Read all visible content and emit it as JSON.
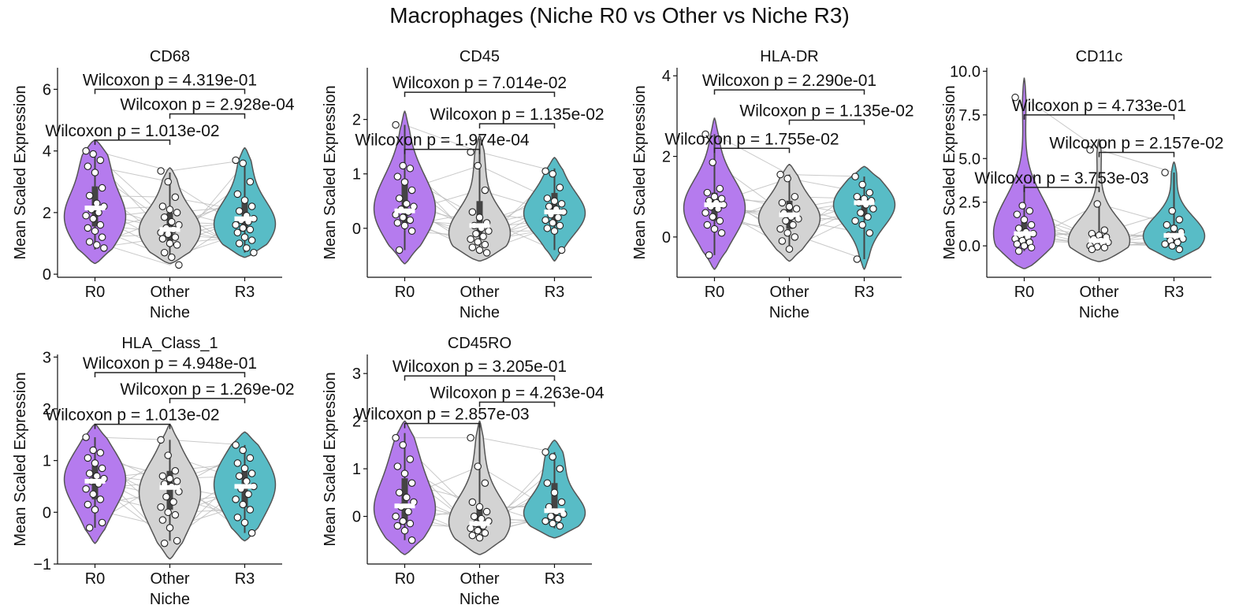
{
  "figure_title": "Macrophages (Niche R0 vs Other vs Niche R3)",
  "colors": {
    "R0": "#b57bee",
    "Other": "#d3d3d3",
    "R3": "#58bcc6",
    "outline": "#555555",
    "pair_line": "#bbbbbb",
    "median": "#ffffff",
    "iqr": "#444444"
  },
  "chart_data": [
    {
      "type": "violin",
      "title": "CD68",
      "xlabel": "Niche",
      "ylabel": "Mean Scaled Expression",
      "categories": [
        "R0",
        "Other",
        "R3"
      ],
      "ylim": [
        -0.1,
        6.7
      ],
      "yticks": [
        0,
        2,
        4,
        6
      ],
      "ytick_labels": [
        "0",
        "2",
        "4",
        "6"
      ],
      "medians": [
        2.15,
        1.45,
        1.8
      ],
      "iqr": [
        [
          1.55,
          2.85
        ],
        [
          1.05,
          2.0
        ],
        [
          1.45,
          2.45
        ]
      ],
      "whiskers": [
        [
          0.8,
          4.0
        ],
        [
          0.6,
          3.3
        ],
        [
          0.7,
          3.7
        ]
      ],
      "violin_extent": [
        [
          0.35,
          4.35
        ],
        [
          0.35,
          3.45
        ],
        [
          0.55,
          4.1
        ]
      ],
      "points": [
        [
          4.0,
          3.9,
          3.7,
          3.5,
          3.3,
          2.8,
          2.55,
          2.3,
          2.2,
          2.1,
          2.0,
          1.9,
          1.8,
          1.6,
          1.5,
          1.4,
          1.2,
          1.05,
          0.95,
          0.85
        ],
        [
          3.35,
          3.0,
          2.5,
          2.2,
          2.1,
          2.0,
          1.85,
          1.7,
          1.6,
          1.5,
          1.45,
          1.35,
          1.3,
          1.2,
          1.15,
          1.0,
          0.95,
          0.7,
          0.55,
          0.3
        ],
        [
          3.7,
          3.6,
          3.0,
          2.6,
          2.4,
          2.2,
          2.05,
          1.9,
          1.8,
          1.75,
          1.7,
          1.6,
          1.5,
          1.45,
          1.35,
          1.2,
          1.1,
          1.0,
          0.85,
          0.7
        ]
      ],
      "annotations": [
        {
          "text": "Wilcoxon p = 4.319e-01",
          "from": 0,
          "to": 2,
          "y": 6.0
        },
        {
          "text": "Wilcoxon p = 2.928e-04",
          "from": 1,
          "to": 2,
          "y": 5.2
        },
        {
          "text": "Wilcoxon p = 1.013e-02",
          "from": 0,
          "to": 1,
          "y": 4.35
        }
      ]
    },
    {
      "type": "violin",
      "title": "CD45",
      "xlabel": "Niche",
      "ylabel": "Mean Scaled Expression",
      "categories": [
        "R0",
        "Other",
        "R3"
      ],
      "ylim": [
        -0.9,
        2.95
      ],
      "yticks": [
        0,
        1,
        2
      ],
      "ytick_labels": [
        "0",
        "1",
        "2"
      ],
      "medians": [
        0.32,
        0.05,
        0.3
      ],
      "iqr": [
        [
          0.1,
          0.9
        ],
        [
          -0.15,
          0.5
        ],
        [
          0.05,
          0.65
        ]
      ],
      "whiskers": [
        [
          -0.4,
          1.9
        ],
        [
          -0.45,
          1.65
        ],
        [
          -0.4,
          1.1
        ]
      ],
      "violin_extent": [
        [
          -0.65,
          2.15
        ],
        [
          -0.6,
          1.7
        ],
        [
          -0.6,
          1.3
        ]
      ],
      "points": [
        [
          1.9,
          1.15,
          1.1,
          0.95,
          0.85,
          0.7,
          0.55,
          0.45,
          0.4,
          0.35,
          0.3,
          0.25,
          0.2,
          0.15,
          0.1,
          0.05,
          -0.05,
          -0.4
        ],
        [
          1.4,
          1.15,
          0.7,
          0.3,
          0.2,
          0.1,
          0.05,
          0.0,
          -0.05,
          -0.1,
          -0.15,
          -0.2,
          -0.25,
          -0.3,
          -0.35,
          -0.4,
          -0.45
        ],
        [
          1.05,
          1.0,
          0.75,
          0.55,
          0.5,
          0.45,
          0.4,
          0.35,
          0.3,
          0.25,
          0.2,
          0.15,
          0.1,
          0.05,
          0.0,
          -0.05,
          -0.4
        ]
      ],
      "annotations": [
        {
          "text": "Wilcoxon p = 7.014e-02",
          "from": 0,
          "to": 2,
          "y": 2.5
        },
        {
          "text": "Wilcoxon p = 1.135e-02",
          "from": 1,
          "to": 2,
          "y": 1.92
        },
        {
          "text": "Wilcoxon p = 1.974e-04",
          "from": 0,
          "to": 1,
          "y": 1.45
        }
      ]
    },
    {
      "type": "violin",
      "title": "HLA-DR",
      "xlabel": "Niche",
      "ylabel": "Mean Scaled Expression",
      "categories": [
        "R0",
        "Other",
        "R3"
      ],
      "ylim": [
        -1.0,
        4.2
      ],
      "yticks": [
        0,
        2,
        4
      ],
      "ytick_labels": [
        "0",
        "2",
        "4"
      ],
      "medians": [
        0.8,
        0.55,
        0.85
      ],
      "iqr": [
        [
          0.4,
          1.1
        ],
        [
          0.2,
          0.9
        ],
        [
          0.5,
          1.0
        ]
      ],
      "whiskers": [
        [
          -0.45,
          2.55
        ],
        [
          -0.3,
          1.55
        ],
        [
          -0.55,
          1.5
        ]
      ],
      "violin_extent": [
        [
          -0.8,
          2.95
        ],
        [
          -0.6,
          1.8
        ],
        [
          -0.8,
          1.75
        ]
      ],
      "points": [
        [
          2.55,
          1.85,
          1.2,
          1.1,
          1.0,
          0.95,
          0.9,
          0.85,
          0.8,
          0.75,
          0.7,
          0.6,
          0.5,
          0.4,
          0.3,
          0.2,
          0.1,
          -0.45
        ],
        [
          1.55,
          1.45,
          1.0,
          0.85,
          0.75,
          0.7,
          0.6,
          0.5,
          0.45,
          0.4,
          0.3,
          0.2,
          0.1,
          0.0,
          -0.1,
          -0.3
        ],
        [
          1.5,
          1.3,
          1.1,
          1.0,
          0.95,
          0.9,
          0.85,
          0.8,
          0.7,
          0.6,
          0.5,
          0.4,
          0.3,
          0.1,
          -0.55
        ]
      ],
      "annotations": [
        {
          "text": "Wilcoxon p = 2.290e-01",
          "from": 0,
          "to": 2,
          "y": 3.65
        },
        {
          "text": "Wilcoxon p = 1.135e-02",
          "from": 1,
          "to": 2,
          "y": 2.9
        },
        {
          "text": "Wilcoxon p = 1.755e-02",
          "from": 0,
          "to": 1,
          "y": 2.2
        }
      ]
    },
    {
      "type": "violin",
      "title": "CD11c",
      "xlabel": "Niche",
      "ylabel": "Mean Scaled Expression",
      "categories": [
        "R0",
        "Other",
        "R3"
      ],
      "ylim": [
        -1.8,
        10.2
      ],
      "yticks": [
        0,
        2.5,
        5,
        7.5,
        10
      ],
      "ytick_labels": [
        "0.0",
        "2.5",
        "5.0",
        "7.5",
        "10.0"
      ],
      "medians": [
        0.7,
        0.3,
        0.6
      ],
      "iqr": [
        [
          0.2,
          1.5
        ],
        [
          0.0,
          0.7
        ],
        [
          0.1,
          1.2
        ]
      ],
      "whiskers": [
        [
          -0.3,
          3.5
        ],
        [
          -0.2,
          2.3
        ],
        [
          -0.2,
          4.2
        ]
      ],
      "violin_extent": [
        [
          -1.3,
          9.6
        ],
        [
          -0.9,
          6.1
        ],
        [
          -0.8,
          4.8
        ]
      ],
      "points": [
        [
          8.5,
          2.3,
          2.0,
          1.8,
          1.5,
          1.2,
          1.0,
          0.8,
          0.7,
          0.6,
          0.5,
          0.4,
          0.3,
          0.2,
          0.1,
          0.0,
          -0.1,
          -0.3
        ],
        [
          5.5,
          2.4,
          0.9,
          0.7,
          0.6,
          0.5,
          0.4,
          0.3,
          0.2,
          0.15,
          0.1,
          0.0,
          -0.05,
          -0.1,
          -0.2
        ],
        [
          4.2,
          2.0,
          1.5,
          1.2,
          1.0,
          0.8,
          0.6,
          0.5,
          0.4,
          0.3,
          0.2,
          0.1,
          0.0,
          -0.2
        ]
      ],
      "annotations": [
        {
          "text": "Wilcoxon p = 4.733e-01",
          "from": 0,
          "to": 2,
          "y": 7.5
        },
        {
          "text": "Wilcoxon p = 2.157e-02",
          "from": 1,
          "to": 2,
          "y": 5.35
        },
        {
          "text": "Wilcoxon p = 3.753e-03",
          "from": 0,
          "to": 1,
          "y": 3.35
        }
      ]
    },
    {
      "type": "violin",
      "title": "HLA_Class_1",
      "xlabel": "Niche",
      "ylabel": "Mean Scaled Expression",
      "categories": [
        "R0",
        "Other",
        "R3"
      ],
      "ylim": [
        -1.0,
        3.05
      ],
      "yticks": [
        -1,
        0,
        1,
        2,
        3
      ],
      "ytick_labels": [
        "−1",
        "0",
        "1",
        "2",
        "3"
      ],
      "medians": [
        0.6,
        0.48,
        0.5
      ],
      "iqr": [
        [
          0.25,
          0.95
        ],
        [
          0.05,
          0.8
        ],
        [
          0.1,
          0.85
        ]
      ],
      "whiskers": [
        [
          -0.3,
          1.45
        ],
        [
          -0.55,
          1.4
        ],
        [
          -0.4,
          1.3
        ]
      ],
      "violin_extent": [
        [
          -0.6,
          1.7
        ],
        [
          -0.9,
          1.7
        ],
        [
          -0.55,
          1.55
        ]
      ],
      "points": [
        [
          1.45,
          1.2,
          1.15,
          1.05,
          0.95,
          0.85,
          0.75,
          0.7,
          0.65,
          0.6,
          0.55,
          0.45,
          0.35,
          0.25,
          0.15,
          0.05,
          -0.2,
          -0.3
        ],
        [
          1.4,
          1.1,
          0.8,
          0.7,
          0.65,
          0.6,
          0.55,
          0.5,
          0.4,
          0.3,
          0.2,
          0.1,
          0.0,
          -0.05,
          -0.15,
          -0.3,
          -0.55,
          -0.6
        ],
        [
          1.3,
          1.2,
          1.05,
          0.95,
          0.85,
          0.75,
          0.7,
          0.6,
          0.5,
          0.45,
          0.35,
          0.25,
          0.15,
          0.05,
          -0.1,
          -0.2,
          -0.4
        ]
      ],
      "annotations": [
        {
          "text": "Wilcoxon p = 4.948e-01",
          "from": 0,
          "to": 2,
          "y": 2.7
        },
        {
          "text": "Wilcoxon p = 1.269e-02",
          "from": 1,
          "to": 2,
          "y": 2.2
        },
        {
          "text": "Wilcoxon p = 1.013e-02",
          "from": 0,
          "to": 1,
          "y": 1.7
        }
      ]
    },
    {
      "type": "violin",
      "title": "CD45RO",
      "xlabel": "Niche",
      "ylabel": "Mean Scaled Expression",
      "categories": [
        "R0",
        "Other",
        "R3"
      ],
      "ylim": [
        -1.0,
        3.4
      ],
      "yticks": [
        0,
        1,
        2,
        3
      ],
      "ytick_labels": [
        "0",
        "1",
        "2",
        "3"
      ],
      "medians": [
        0.22,
        -0.15,
        0.12
      ],
      "iqr": [
        [
          -0.1,
          0.8
        ],
        [
          -0.3,
          0.2
        ],
        [
          -0.05,
          0.7
        ]
      ],
      "whiskers": [
        [
          -0.5,
          1.75
        ],
        [
          -0.4,
          1.9
        ],
        [
          -0.25,
          1.35
        ]
      ],
      "violin_extent": [
        [
          -0.8,
          2.0
        ],
        [
          -0.8,
          2.0
        ],
        [
          -0.45,
          1.6
        ]
      ],
      "points": [
        [
          1.65,
          1.5,
          1.2,
          1.05,
          0.9,
          0.7,
          0.5,
          0.4,
          0.3,
          0.2,
          0.1,
          0.0,
          -0.1,
          -0.15,
          -0.2,
          -0.3,
          -0.5
        ],
        [
          1.65,
          1.05,
          0.7,
          0.3,
          0.2,
          0.1,
          0.0,
          -0.05,
          -0.1,
          -0.15,
          -0.2,
          -0.25,
          -0.3,
          -0.35,
          -0.4,
          -0.45
        ],
        [
          1.35,
          1.25,
          1.0,
          0.7,
          0.5,
          0.3,
          0.2,
          0.1,
          0.05,
          0.0,
          -0.05,
          -0.1,
          -0.15,
          -0.2
        ]
      ],
      "annotations": [
        {
          "text": "Wilcoxon p = 3.205e-01",
          "from": 0,
          "to": 2,
          "y": 2.95
        },
        {
          "text": "Wilcoxon p = 4.263e-04",
          "from": 1,
          "to": 2,
          "y": 2.4
        },
        {
          "text": "Wilcoxon p = 2.857e-03",
          "from": 0,
          "to": 1,
          "y": 1.95
        }
      ]
    }
  ]
}
